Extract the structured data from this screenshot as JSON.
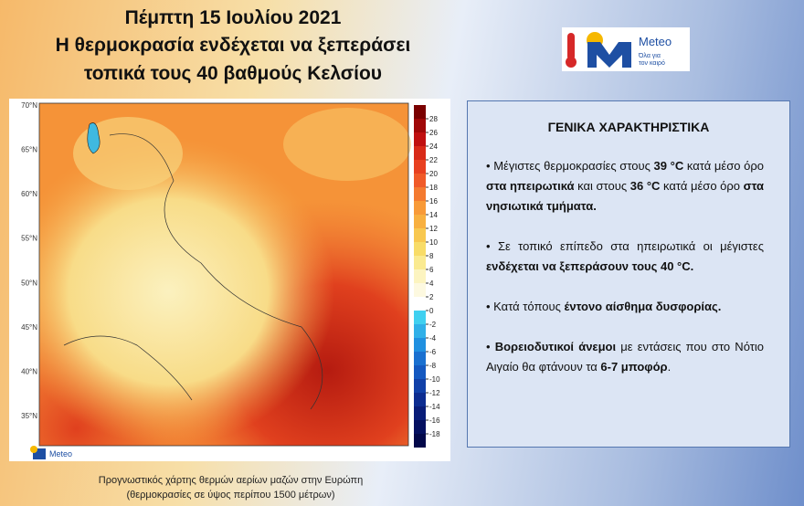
{
  "header": {
    "title_lines": [
      "Πέμπτη 15 Ιουλίου 2021",
      "Η θερμοκρασία ενδέχεται να ξεπεράσει",
      "τοπικά τους 40 βαθμούς Κελσίου"
    ]
  },
  "logo": {
    "name": "Meteo",
    "slogan_lines": [
      "Όλα για",
      "τον καιρό"
    ]
  },
  "map": {
    "lat_labels": [
      "70°N",
      "65°N",
      "60°N",
      "55°N",
      "50°N",
      "45°N",
      "40°N",
      "35°N"
    ],
    "colorbar": {
      "ticks": [
        28,
        26,
        24,
        22,
        20,
        18,
        16,
        14,
        12,
        10,
        8,
        6,
        4,
        2,
        0,
        -2,
        -4,
        -6,
        -8,
        -10,
        -12,
        -14,
        -16,
        -18
      ]
    },
    "logo_name": "Meteo",
    "caption_lines": [
      "Προγνωστικός χάρτης θερμών αερίων μαζών στην Ευρώπη",
      "(θερμοκρασίες σε ύψος περίπου 1500 μέτρων)"
    ]
  },
  "panel": {
    "heading": "ΓΕΝΙΚΑ ΧΑΡΑΚΤΗΡΙΣΤΙΚΑ",
    "bullets": [
      [
        {
          "text": "Μέγιστες θερμοκρασίες στους ",
          "bold": false
        },
        {
          "text": "39 °C",
          "bold": true
        },
        {
          "text": " κατά μέσο όρο ",
          "bold": false
        },
        {
          "text": "στα ηπειρωτικά",
          "bold": true
        },
        {
          "text": " και στους ",
          "bold": false
        },
        {
          "text": "36 °C",
          "bold": true
        },
        {
          "text": " κατά μέσο όρο ",
          "bold": false
        },
        {
          "text": "στα νησιωτικά τμήματα.",
          "bold": true
        }
      ],
      [
        {
          "text": "Σε τοπικό επίπεδο στα ηπειρωτικά οι μέγιστες ",
          "bold": false
        },
        {
          "text": "ενδέχεται να ξεπεράσουν τους 40 °C.",
          "bold": true
        }
      ],
      [
        {
          "text": "Κατά τόπους ",
          "bold": false
        },
        {
          "text": "έντονο αίσθημα δυσφορίας.",
          "bold": true
        }
      ],
      [
        {
          "text": "Βορειοδυτικοί άνεμοι",
          "bold": true
        },
        {
          "text": " με εντάσεις που στο Νότιο Αιγαίο θα φτάνουν τα ",
          "bold": false
        },
        {
          "text": "6-7 μποφόρ",
          "bold": true
        },
        {
          "text": ".",
          "bold": false
        }
      ]
    ]
  }
}
